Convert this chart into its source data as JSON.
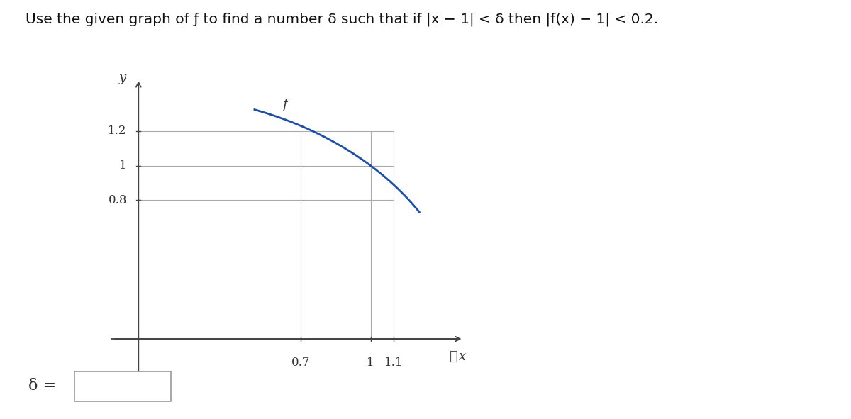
{
  "title_text": "Use the given graph of ƒ to find a number δ such that if |x − 1| < δ then |f(x) − 1| < 0.2.",
  "title_fontsize": 14.5,
  "curve_color": "#1a4fad",
  "curve_linewidth": 2.0,
  "grid_color": "#aaaaaa",
  "grid_linewidth": 0.8,
  "axis_color": "#555555",
  "tick_label_color": "#333333",
  "x_ticks": [
    0.7,
    1.0,
    1.1
  ],
  "x_tick_labels": [
    "0.7",
    "1",
    "1.1"
  ],
  "y_ticks": [
    0.8,
    1.0,
    1.2
  ],
  "y_tick_labels": [
    "0.8",
    "1",
    "1.2"
  ],
  "x_label": "x",
  "y_label": "y",
  "f_label": "f",
  "delta_label": "δ =",
  "background_color": "#ffffff",
  "xlim": [
    -0.12,
    1.42
  ],
  "ylim": [
    -0.22,
    1.52
  ],
  "curve_x_start": 0.5,
  "curve_x_end": 1.21
}
